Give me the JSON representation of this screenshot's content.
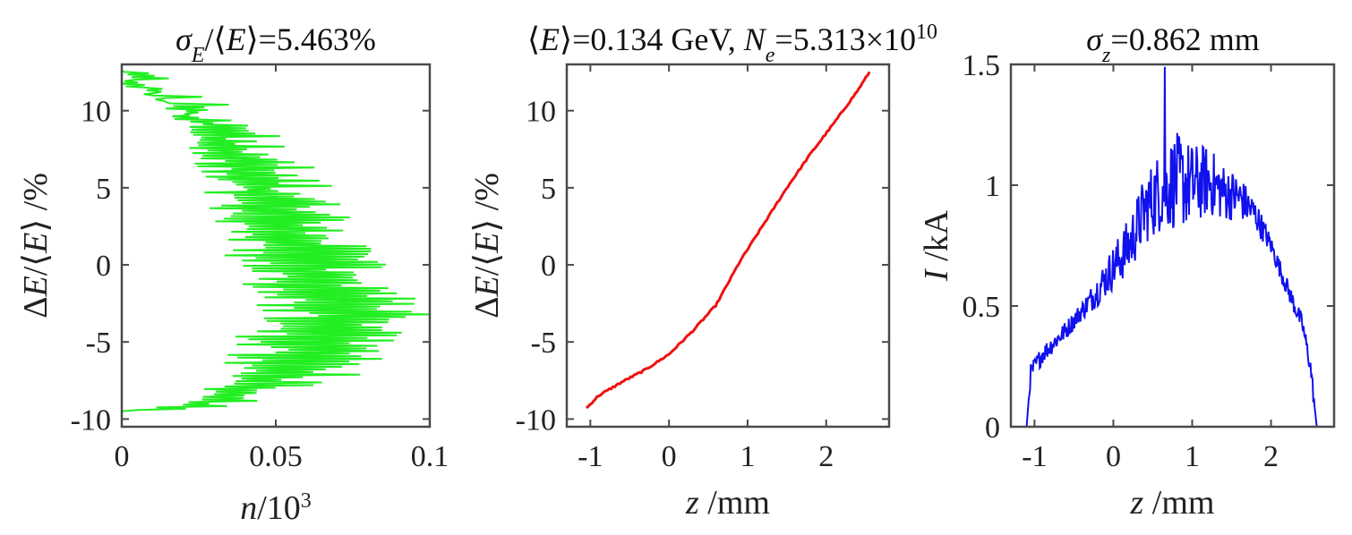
{
  "titles": {
    "p1": "σ_E/⟨E⟩=5.463%",
    "p2": "⟨E⟩=0.134 GeV, N_e=5.313×10^10",
    "p3": "σ_z=0.862 mm"
  },
  "chart_data": [
    {
      "type": "line",
      "panel": "energy-histogram",
      "color": "#22ee22",
      "xlabel": "n/10^3",
      "ylabel": "ΔE/⟨E⟩ /%",
      "xlim": [
        0,
        0.1
      ],
      "ylim": [
        -10.5,
        13
      ],
      "xticks": [
        0,
        0.05,
        0.1
      ],
      "xticklabels": [
        "0",
        "0.05",
        "0.1"
      ],
      "yticks": [
        -10,
        -5,
        0,
        5,
        10
      ],
      "yticklabels": [
        "-10",
        "-5",
        "0",
        "5",
        "10"
      ],
      "envelope": {
        "y": [
          -9.5,
          -9.3,
          -9,
          -8,
          -7,
          -6,
          -5,
          -4,
          -3,
          -2,
          -1,
          0,
          1,
          2,
          3,
          4,
          5,
          6,
          7,
          8,
          9,
          10,
          11,
          12,
          12.6
        ],
        "x": [
          0,
          0.02,
          0.035,
          0.05,
          0.07,
          0.075,
          0.08,
          0.085,
          0.095,
          0.085,
          0.08,
          0.075,
          0.072,
          0.07,
          0.065,
          0.06,
          0.058,
          0.055,
          0.05,
          0.045,
          0.04,
          0.03,
          0.018,
          0.008,
          0
        ]
      }
    },
    {
      "type": "line",
      "panel": "longitudinal-phase-space",
      "color": "#ee1111",
      "xlabel": "z /mm",
      "ylabel": "ΔE/⟨E⟩ /%",
      "xlim": [
        -1.3,
        2.8
      ],
      "ylim": [
        -10.5,
        13
      ],
      "xticks": [
        -1,
        0,
        1,
        2
      ],
      "xticklabels": [
        "-1",
        "0",
        "1",
        "2"
      ],
      "yticks": [
        -10,
        -5,
        0,
        5,
        10
      ],
      "yticklabels": [
        "-10",
        "-5",
        "0",
        "5",
        "10"
      ],
      "x": [
        -1.05,
        -0.9,
        -0.6,
        -0.3,
        0,
        0.3,
        0.6,
        0.9,
        1.2,
        1.5,
        1.8,
        2.1,
        2.4,
        2.55
      ],
      "y": [
        -9.3,
        -8.5,
        -7.6,
        -6.8,
        -5.8,
        -4.3,
        -2.6,
        0.2,
        2.6,
        5,
        7.2,
        9.2,
        11.3,
        12.5
      ]
    },
    {
      "type": "line",
      "panel": "current-profile",
      "color": "#1111ee",
      "xlabel": "I /kA",
      "xaxis_label": "z /mm",
      "xlim": [
        -1.3,
        2.8
      ],
      "ylim": [
        0,
        1.5
      ],
      "xticks": [
        -1,
        0,
        1,
        2
      ],
      "xticklabels": [
        "-1",
        "0",
        "1",
        "2"
      ],
      "yticks": [
        0,
        0.5,
        1,
        1.5
      ],
      "yticklabels": [
        "0",
        "0.5",
        "1",
        "1.5"
      ],
      "envelope": {
        "x": [
          -1.1,
          -1.05,
          -0.9,
          -0.6,
          -0.3,
          0,
          0.2,
          0.4,
          0.6,
          0.8,
          1.0,
          1.2,
          1.4,
          1.6,
          1.8,
          2.0,
          2.2,
          2.4,
          2.5,
          2.58
        ],
        "y": [
          0,
          0.22,
          0.3,
          0.4,
          0.52,
          0.66,
          0.75,
          0.9,
          0.98,
          1.02,
          1.0,
          1.02,
          0.97,
          0.95,
          0.88,
          0.75,
          0.58,
          0.42,
          0.25,
          0
        ]
      },
      "peak": {
        "x": 0.65,
        "y": 1.49
      }
    }
  ]
}
